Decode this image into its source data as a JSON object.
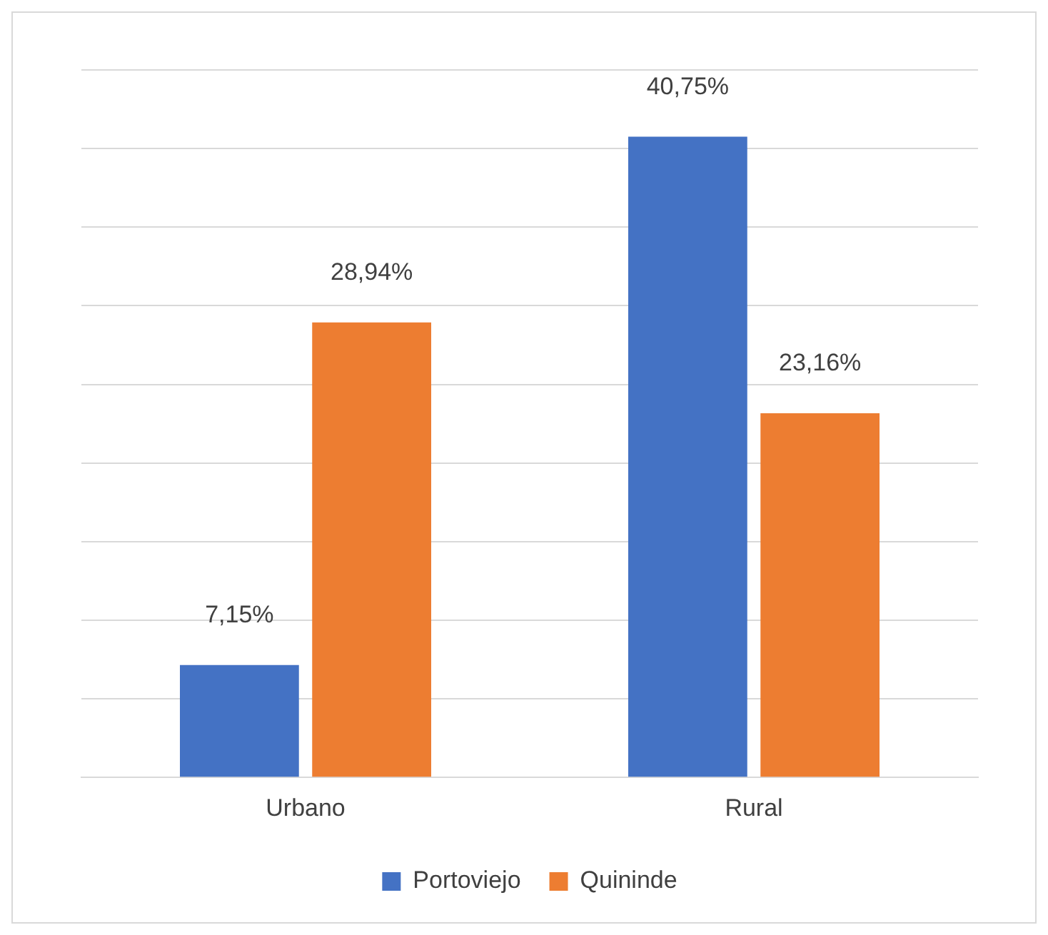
{
  "chart_data": {
    "type": "bar",
    "categories": [
      "Urbano",
      "Rural"
    ],
    "series": [
      {
        "name": "Portoviejo",
        "color": "#4472c4",
        "values": [
          7.15,
          40.75
        ],
        "value_labels": [
          "7,15%",
          "40,75%"
        ]
      },
      {
        "name": "Quininde",
        "color": "#ed7d31",
        "values": [
          28.94,
          23.16
        ],
        "value_labels": [
          "28,94%",
          "23,16%"
        ]
      }
    ],
    "ylim": [
      0,
      45
    ],
    "yticks": [
      {
        "value": 0,
        "label": null
      },
      {
        "value": 5,
        "label": null
      },
      {
        "value": 10,
        "label": null
      },
      {
        "value": 15,
        "label": null
      },
      {
        "value": 20,
        "label": null
      },
      {
        "value": 25,
        "label": null
      },
      {
        "value": 30,
        "label": null
      },
      {
        "value": 35,
        "label": null
      },
      {
        "value": 40,
        "label": null
      },
      {
        "value": 45,
        "label": null
      }
    ],
    "grid": "y",
    "legend": "bottom",
    "tick_labels": "x"
  }
}
